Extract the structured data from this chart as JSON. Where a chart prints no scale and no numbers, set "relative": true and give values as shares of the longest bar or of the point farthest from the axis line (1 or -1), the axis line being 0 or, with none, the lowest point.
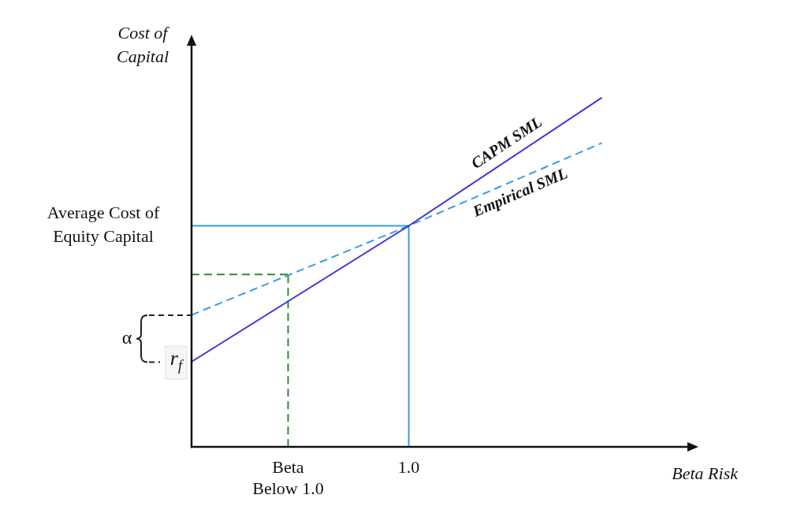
{
  "chart_data": {
    "type": "line",
    "relative": true,
    "xlabel": "Beta Risk",
    "ylabel": "Cost of Capital",
    "marker": "none",
    "legend": false,
    "grid": false,
    "categories": [
      null,
      null,
      null,
      null,
      "Beta Below 1.0",
      null,
      null,
      null,
      null,
      "1.0",
      null,
      null,
      null,
      null,
      null,
      null,
      null,
      null,
      null,
      null,
      null,
      null
    ],
    "series": [
      {
        "name": "CAPM SML",
        "color": "#3f36d8",
        "line_style": "solid",
        "values": [
          0.244,
          null,
          null,
          null,
          null,
          null,
          null,
          null,
          null,
          0.633,
          null,
          null,
          null,
          null,
          null,
          null,
          null,
          1,
          null,
          null,
          null,
          null
        ]
      },
      {
        "name": "Empirical SML",
        "color": "#3a9be8",
        "line_style": "dashed",
        "values": [
          0.378,
          null,
          null,
          null,
          null,
          null,
          null,
          null,
          null,
          0.633,
          null,
          null,
          null,
          null,
          null,
          null,
          null,
          0.87,
          null,
          null,
          null,
          null
        ]
      }
    ],
    "ref_lines": [
      {
        "axis": "y",
        "value": 0.633,
        "label": "Average Cost of Equity Capital",
        "color": "#3a9be8",
        "line_style": "solid"
      },
      {
        "axis": "x",
        "value": "1.0",
        "color": "#3a9be8",
        "line_style": "solid"
      },
      {
        "axis": "y",
        "value": 0.494,
        "color": "#2e8b2e",
        "line_style": "dashed"
      },
      {
        "axis": "x",
        "value": "Beta Below 1.0",
        "color": "#2e8b2e",
        "line_style": "dashed"
      }
    ],
    "annotations": [
      "r$_{f}$",
      "α"
    ]
  }
}
